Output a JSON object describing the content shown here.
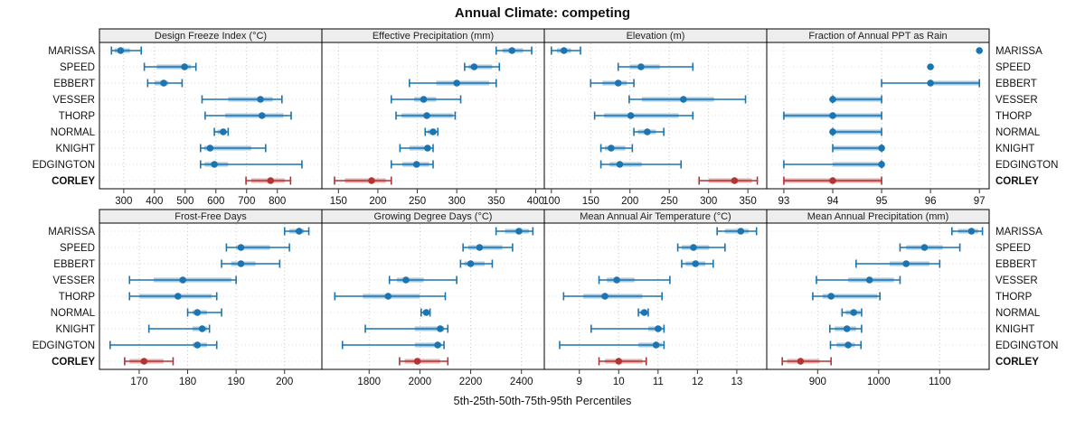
{
  "title": "Annual Climate: competing",
  "footer": "5th-25th-50th-75th-95th Percentiles",
  "chart_data": {
    "type": "dotplot",
    "title": "Annual Climate: competing",
    "xlabel": "5th-25th-50th-75th-95th Percentiles",
    "percentile_labels": [
      "5th",
      "25th",
      "50th",
      "75th",
      "95th"
    ],
    "categories": [
      "MARISSA",
      "SPEED",
      "EBBERT",
      "VESSER",
      "THORP",
      "NORMAL",
      "KNIGHT",
      "EDGINGTON",
      "CORLEY"
    ],
    "highlight_category": "CORLEY",
    "legend_position": "none",
    "grid": "on",
    "colors": {
      "series": "#1c74b0",
      "series_band": "#a6c9e2",
      "highlight": "#b23434",
      "highlight_band": "#e2aeae",
      "header_bg": "#ededed",
      "grid": "#c9c9c9",
      "grid_row": "#dcdcdc",
      "border": "#000000",
      "text": "#111111"
    },
    "panels": [
      {
        "title": "Design Freeze Index (°C)",
        "xlim": [
          221,
          945
        ],
        "ticks": [
          300,
          400,
          500,
          600,
          700,
          800
        ],
        "series": [
          [
            260,
            270,
            290,
            320,
            357
          ],
          [
            367,
            407,
            498,
            519,
            535
          ],
          [
            378,
            400,
            430,
            445,
            490
          ],
          [
            555,
            640,
            745,
            785,
            815
          ],
          [
            565,
            630,
            750,
            820,
            845
          ],
          [
            595,
            605,
            624,
            632,
            640
          ],
          [
            550,
            562,
            581,
            715,
            762
          ],
          [
            550,
            563,
            595,
            640,
            880
          ],
          [
            698,
            715,
            778,
            824,
            843
          ]
        ]
      },
      {
        "title": "Effective Precipitation (mm)",
        "xlim": [
          129,
          411
        ],
        "ticks": [
          150,
          200,
          250,
          300,
          350,
          400
        ],
        "series": [
          [
            350,
            358,
            370,
            384,
            395
          ],
          [
            310,
            315,
            322,
            345,
            354
          ],
          [
            240,
            274,
            300,
            341,
            350
          ],
          [
            217,
            246,
            258,
            274,
            305
          ],
          [
            223,
            230,
            262,
            295,
            298
          ],
          [
            260,
            263,
            270,
            273,
            276
          ],
          [
            228,
            240,
            263,
            267,
            270
          ],
          [
            217,
            231,
            249,
            265,
            270
          ],
          [
            145,
            158,
            192,
            210,
            217
          ]
        ]
      },
      {
        "title": "Elevation (m)",
        "xlim": [
          91,
          374
        ],
        "ticks": [
          100,
          150,
          200,
          250,
          300,
          350
        ],
        "series": [
          [
            100,
            107,
            116,
            125,
            137
          ],
          [
            185,
            200,
            214,
            238,
            280
          ],
          [
            150,
            165,
            185,
            196,
            205
          ],
          [
            199,
            215,
            268,
            307,
            347
          ],
          [
            155,
            167,
            201,
            262,
            280
          ],
          [
            205,
            210,
            222,
            233,
            243
          ],
          [
            163,
            168,
            176,
            194,
            203
          ],
          [
            163,
            174,
            187,
            215,
            265
          ],
          [
            288,
            300,
            333,
            355,
            362
          ]
        ]
      },
      {
        "title": "Fraction of Annual PPT as Rain",
        "xlim": [
          92.65,
          97.2
        ],
        "ticks": [
          93,
          94,
          95,
          96,
          97
        ],
        "series": [
          [
            97,
            97,
            97,
            97,
            97
          ],
          [
            96,
            96,
            96,
            96,
            96
          ],
          [
            95,
            96,
            96,
            97,
            97
          ],
          [
            94,
            94,
            94,
            95,
            95
          ],
          [
            93,
            93,
            94,
            95,
            95
          ],
          [
            94,
            94,
            94,
            95,
            95
          ],
          [
            94,
            94,
            95,
            95,
            95
          ],
          [
            93,
            94,
            95,
            95,
            95
          ],
          [
            93,
            93,
            94,
            95,
            95
          ]
        ]
      },
      {
        "title": "Frost-Free Days",
        "xlim": [
          161.8,
          207.7
        ],
        "ticks": [
          170,
          180,
          190,
          200
        ],
        "series": [
          [
            200,
            201,
            203,
            204,
            205
          ],
          [
            188,
            190,
            191,
            197,
            201
          ],
          [
            187,
            189,
            191,
            194,
            199
          ],
          [
            168,
            173,
            179,
            189,
            190
          ],
          [
            168,
            170,
            178,
            185,
            186
          ],
          [
            180,
            181,
            182,
            184,
            187
          ],
          [
            172,
            181,
            183,
            184,
            184.5
          ],
          [
            164,
            181,
            182,
            184,
            186
          ],
          [
            167,
            168,
            171,
            175,
            177
          ]
        ]
      },
      {
        "title": "Growing Degree Days (°C)",
        "xlim": [
          1614,
          2490
        ],
        "ticks": [
          1800,
          2000,
          2200,
          2400
        ],
        "series": [
          [
            2300,
            2335,
            2390,
            2430,
            2445
          ],
          [
            2170,
            2190,
            2235,
            2325,
            2365
          ],
          [
            2160,
            2175,
            2200,
            2255,
            2285
          ],
          [
            1880,
            1910,
            1945,
            2015,
            2145
          ],
          [
            1665,
            1775,
            1875,
            2000,
            2100
          ],
          [
            2005,
            2015,
            2025,
            2035,
            2040
          ],
          [
            1785,
            1980,
            2080,
            2095,
            2110
          ],
          [
            1695,
            1980,
            2070,
            2085,
            2095
          ],
          [
            1920,
            1940,
            1990,
            2080,
            2110
          ]
        ]
      },
      {
        "title": "Mean Annual Air Temperature (°C)",
        "xlim": [
          8.11,
          13.76
        ],
        "ticks": [
          9,
          10,
          11,
          12,
          13
        ],
        "series": [
          [
            12.5,
            12.7,
            13.1,
            13.3,
            13.5
          ],
          [
            11.5,
            11.6,
            11.9,
            12.3,
            12.7
          ],
          [
            11.6,
            11.7,
            11.95,
            12.2,
            12.4
          ],
          [
            9.5,
            9.7,
            9.95,
            10.4,
            11.3
          ],
          [
            8.6,
            9.1,
            9.65,
            10.6,
            11.1
          ],
          [
            10.5,
            10.55,
            10.65,
            10.7,
            10.75
          ],
          [
            9.3,
            10.75,
            11.0,
            11.1,
            11.15
          ],
          [
            8.5,
            10.5,
            10.95,
            11.1,
            11.15
          ],
          [
            9.5,
            9.65,
            10.0,
            10.6,
            10.7
          ]
        ]
      },
      {
        "title": "Mean Annual Precipitation (mm)",
        "xlim": [
          816.6,
          1181
        ],
        "ticks": [
          900,
          1000,
          1100
        ],
        "series": [
          [
            1120,
            1130,
            1152,
            1163,
            1170
          ],
          [
            1035,
            1045,
            1075,
            1105,
            1133
          ],
          [
            963,
            1018,
            1045,
            1083,
            1100
          ],
          [
            898,
            950,
            985,
            1025,
            1035
          ],
          [
            892,
            908,
            922,
            998,
            1002
          ],
          [
            940,
            946,
            959,
            970,
            972
          ],
          [
            920,
            928,
            948,
            963,
            972
          ],
          [
            921,
            931,
            950,
            961,
            971
          ],
          [
            842,
            850,
            872,
            903,
            922
          ]
        ]
      }
    ]
  }
}
